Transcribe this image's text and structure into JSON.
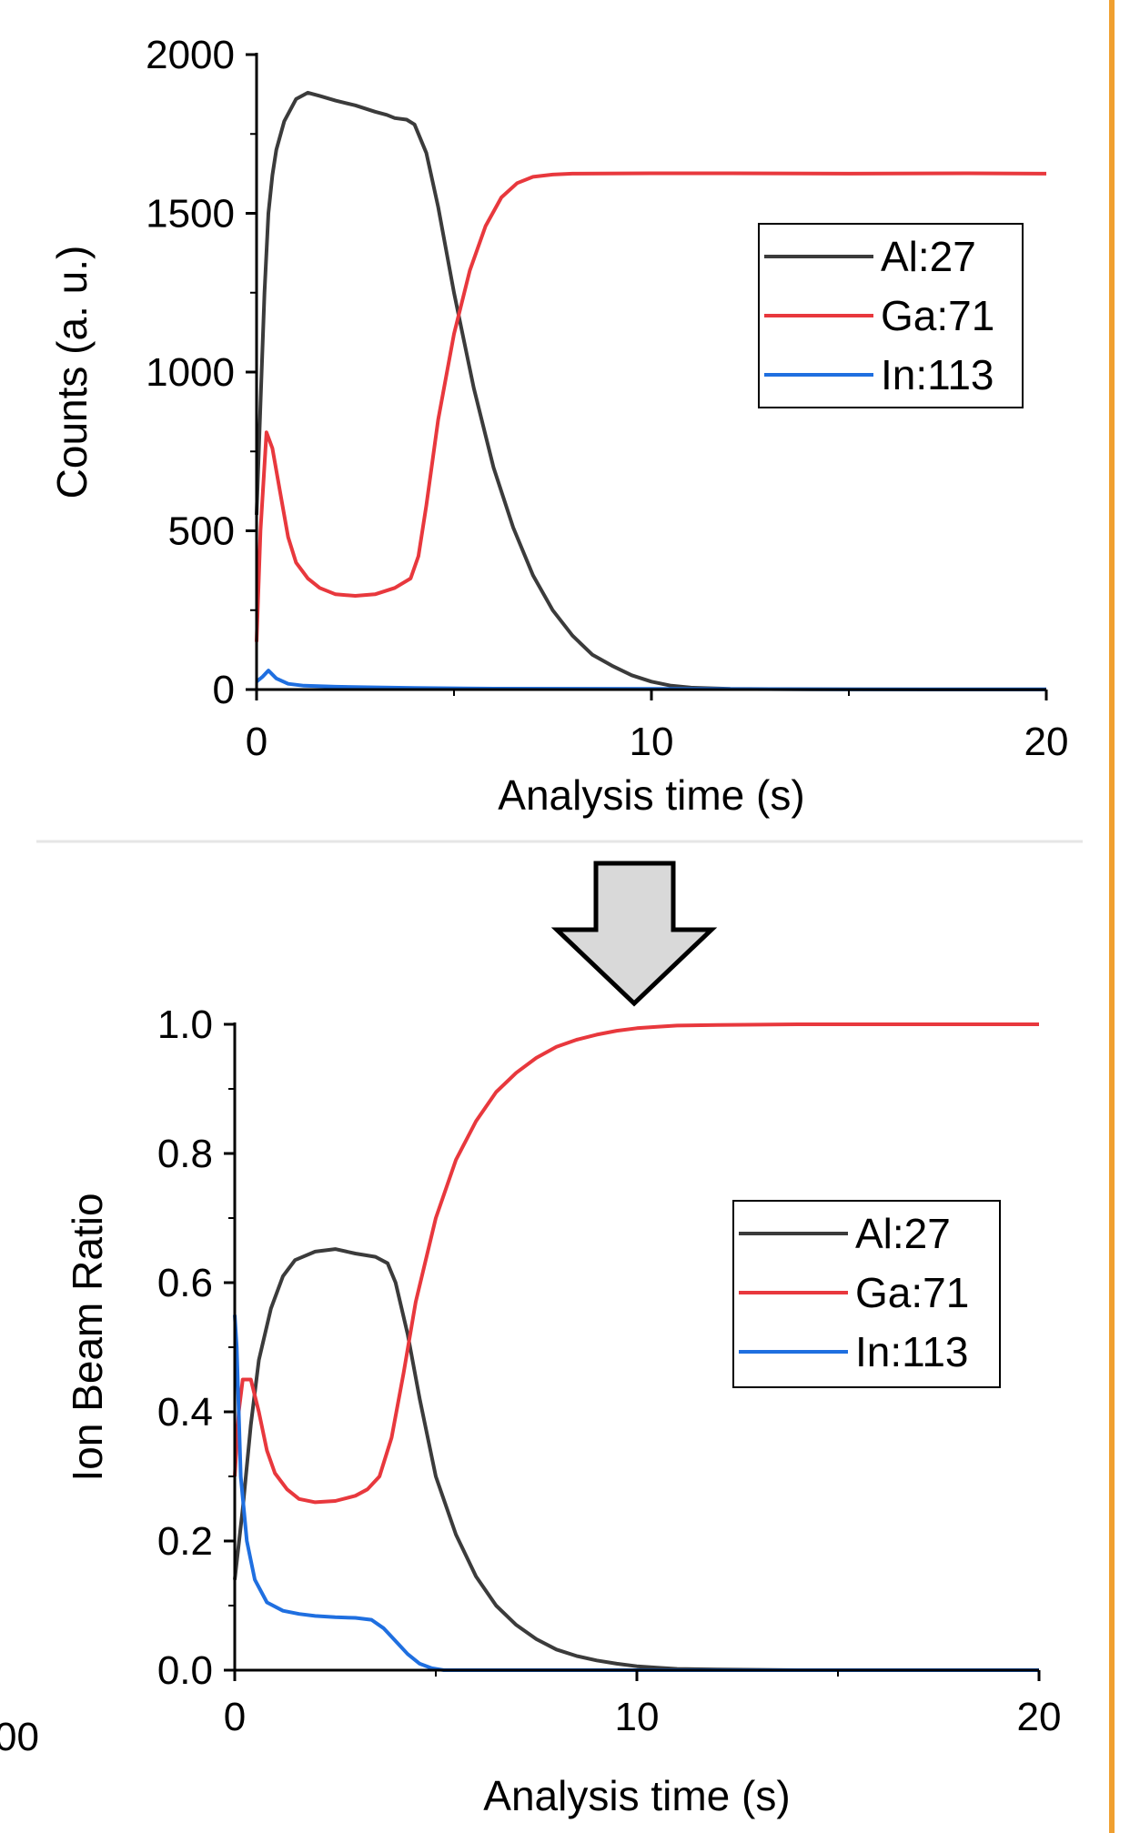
{
  "figure": {
    "stray_label": "00",
    "arrow_fill": "#d9d9d9",
    "border_color": "#f0a030"
  },
  "chart_data": [
    {
      "type": "line",
      "xlabel": "Analysis time (s)",
      "ylabel": "Counts (a. u.)",
      "xlim": [
        0,
        20
      ],
      "ylim": [
        0,
        2000
      ],
      "xticks": [
        0,
        10,
        20
      ],
      "xtick_labels": [
        "0",
        "10",
        "20"
      ],
      "yticks": [
        0,
        500,
        1000,
        1500,
        2000
      ],
      "ytick_labels": [
        "0",
        "500",
        "1000",
        "1500",
        "2000"
      ],
      "grid": false,
      "legend_position": "top-right",
      "series": [
        {
          "name": "Al:27",
          "color": "#3b3b3b",
          "x": [
            0,
            0.1,
            0.2,
            0.3,
            0.4,
            0.5,
            0.7,
            1.0,
            1.3,
            1.6,
            2.0,
            2.5,
            3.0,
            3.3,
            3.5,
            3.8,
            4.0,
            4.3,
            4.6,
            5.0,
            5.5,
            6.0,
            6.5,
            7.0,
            7.5,
            8.0,
            8.5,
            9.0,
            9.5,
            10.0,
            10.5,
            11.0,
            12.0,
            14.0,
            17.0,
            20.0
          ],
          "y": [
            550,
            900,
            1250,
            1500,
            1620,
            1700,
            1790,
            1860,
            1880,
            1870,
            1855,
            1840,
            1820,
            1810,
            1800,
            1795,
            1780,
            1690,
            1520,
            1250,
            950,
            700,
            510,
            360,
            250,
            170,
            110,
            75,
            45,
            25,
            12,
            6,
            2,
            1,
            0,
            0
          ]
        },
        {
          "name": "Ga:71",
          "color": "#e8383d",
          "x": [
            0,
            0.1,
            0.25,
            0.4,
            0.6,
            0.8,
            1.0,
            1.3,
            1.6,
            2.0,
            2.5,
            3.0,
            3.5,
            3.9,
            4.1,
            4.3,
            4.6,
            5.0,
            5.4,
            5.8,
            6.2,
            6.6,
            7.0,
            7.5,
            8.0,
            10.0,
            12.0,
            15.0,
            18.0,
            20.0
          ],
          "y": [
            150,
            500,
            810,
            760,
            620,
            480,
            400,
            350,
            320,
            300,
            295,
            300,
            320,
            350,
            420,
            580,
            850,
            1120,
            1320,
            1460,
            1550,
            1595,
            1615,
            1622,
            1625,
            1626,
            1626,
            1625,
            1626,
            1625
          ]
        },
        {
          "name": "In:113",
          "color": "#1f6fe0",
          "x": [
            0,
            0.15,
            0.3,
            0.5,
            0.8,
            1.2,
            2.0,
            3.0,
            4.0,
            6.0,
            10.0,
            15.0,
            20.0
          ],
          "y": [
            25,
            40,
            60,
            35,
            18,
            12,
            9,
            7,
            5,
            3,
            2,
            1,
            1
          ]
        }
      ]
    },
    {
      "type": "line",
      "xlabel": "Analysis time (s)",
      "ylabel": "Ion Beam Ratio",
      "xlim": [
        0,
        20
      ],
      "ylim": [
        0,
        1.0
      ],
      "xticks": [
        0,
        10,
        20
      ],
      "xtick_labels": [
        "0",
        "10",
        "20"
      ],
      "yticks": [
        0,
        0.2,
        0.4,
        0.6,
        0.8,
        1.0
      ],
      "ytick_labels": [
        "0.0",
        "0.2",
        "0.4",
        "0.6",
        "0.8",
        "1.0"
      ],
      "grid": false,
      "legend_position": "center-right",
      "series": [
        {
          "name": "Al:27",
          "color": "#3b3b3b",
          "x": [
            0,
            0.2,
            0.4,
            0.6,
            0.9,
            1.2,
            1.5,
            2.0,
            2.5,
            3.0,
            3.5,
            3.8,
            4.0,
            4.3,
            4.6,
            5.0,
            5.5,
            6.0,
            6.5,
            7.0,
            7.5,
            8.0,
            8.5,
            9.0,
            9.5,
            10.0,
            10.5,
            11.0,
            12.0,
            14.0,
            17.0,
            20.0
          ],
          "y": [
            0.14,
            0.25,
            0.38,
            0.48,
            0.56,
            0.61,
            0.635,
            0.648,
            0.652,
            0.645,
            0.64,
            0.63,
            0.6,
            0.52,
            0.42,
            0.3,
            0.21,
            0.145,
            0.1,
            0.07,
            0.048,
            0.032,
            0.022,
            0.015,
            0.01,
            0.006,
            0.004,
            0.002,
            0.001,
            0,
            0,
            0
          ]
        },
        {
          "name": "Ga:71",
          "color": "#e8383d",
          "x": [
            0,
            0.1,
            0.2,
            0.4,
            0.6,
            0.8,
            1.0,
            1.3,
            1.6,
            2.0,
            2.5,
            3.0,
            3.3,
            3.6,
            3.9,
            4.2,
            4.5,
            5.0,
            5.5,
            6.0,
            6.5,
            7.0,
            7.5,
            8.0,
            8.5,
            9.0,
            9.5,
            10.0,
            10.5,
            11.0,
            12.0,
            14.0,
            17.0,
            20.0
          ],
          "y": [
            0.3,
            0.4,
            0.45,
            0.45,
            0.4,
            0.34,
            0.305,
            0.28,
            0.265,
            0.26,
            0.262,
            0.27,
            0.28,
            0.3,
            0.36,
            0.46,
            0.57,
            0.7,
            0.79,
            0.85,
            0.895,
            0.925,
            0.948,
            0.965,
            0.976,
            0.984,
            0.99,
            0.994,
            0.996,
            0.998,
            0.999,
            1.0,
            1.0,
            1.0
          ]
        },
        {
          "name": "In:113",
          "color": "#1f6fe0",
          "x": [
            0,
            0.05,
            0.15,
            0.3,
            0.5,
            0.8,
            1.2,
            1.6,
            2.0,
            2.5,
            3.0,
            3.4,
            3.7,
            4.0,
            4.3,
            4.6,
            4.9,
            5.2,
            6.0,
            10.0,
            20.0
          ],
          "y": [
            0.55,
            0.5,
            0.3,
            0.2,
            0.14,
            0.105,
            0.092,
            0.087,
            0.084,
            0.082,
            0.081,
            0.078,
            0.065,
            0.045,
            0.025,
            0.01,
            0.003,
            0,
            0,
            0,
            0
          ]
        }
      ]
    }
  ]
}
